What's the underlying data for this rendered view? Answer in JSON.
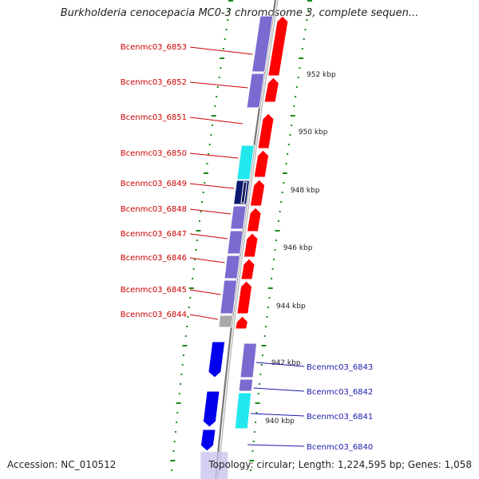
{
  "title": "Burkholderia cenocepacia MC0-3 chromosome 3, complete sequen...",
  "accession": "Accession: NC_010512",
  "topology": "Topology: circular; Length: 1,224,595 bp; Genes: 1,058",
  "colors": {
    "forward_gene": "#ff0000",
    "reverse_gene": "#0000ee",
    "cds_purple": "#7b6bd0",
    "cds_cyan": "#22e8ee",
    "cds_navy": "#0b1a6e",
    "cds_gray": "#a8a8a8",
    "backbone": "#888888",
    "tick_green": "#1a8a1a",
    "left_label": "#cc0000",
    "right_label": "#1a1aaa"
  },
  "scale_labels": [
    "952 kbp",
    "950 kbp",
    "948 kbp",
    "946 kbp",
    "944 kbp",
    "942 kbp",
    "940 kbp"
  ],
  "left_gene_labels": [
    "Bcenmc03_6853",
    "Bcenmc03_6852",
    "Bcenmc03_6851",
    "Bcenmc03_6850",
    "Bcenmc03_6849",
    "Bcenmc03_6848",
    "Bcenmc03_6847",
    "Bcenmc03_6846",
    "Bcenmc03_6845",
    "Bcenmc03_6844"
  ],
  "right_gene_labels": [
    "Bcenmc03_6843",
    "Bcenmc03_6842",
    "Bcenmc03_6841",
    "Bcenmc03_6840"
  ]
}
